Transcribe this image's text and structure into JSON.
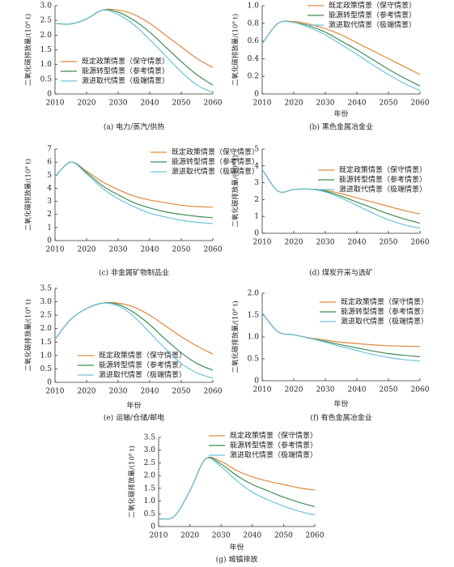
{
  "chart_data": [
    {
      "type": "line",
      "caption": "(a) 电力/蒸汽/供热",
      "y_label": "二氧化碳排放量/(10⁸ t)",
      "x": [
        2010,
        2015,
        2020,
        2025,
        2030,
        2035,
        2040,
        2045,
        2050,
        2055,
        2060
      ],
      "xlim": [
        2010,
        2060
      ],
      "xticks": [
        2010,
        2020,
        2030,
        2040,
        2050,
        2060
      ],
      "ylim": [
        0,
        3
      ],
      "yticks": [
        0,
        0.5,
        {
          "value": 1,
          "label": "1.0"
        },
        1.5,
        {
          "value": 2,
          "label": "2.0"
        },
        2.5,
        {
          "value": 3,
          "label": "3.0"
        }
      ],
      "series": [
        {
          "name": "既定政策情景（保守情景）",
          "color": "#e0883c",
          "values": [
            2.4,
            2.38,
            2.55,
            2.85,
            2.85,
            2.7,
            2.4,
            2.0,
            1.6,
            1.2,
            0.9
          ]
        },
        {
          "name": "能源转型情景（参考情景）",
          "color": "#3f8d55",
          "values": [
            2.4,
            2.38,
            2.55,
            2.85,
            2.78,
            2.5,
            2.1,
            1.6,
            1.1,
            0.65,
            0.3
          ]
        },
        {
          "name": "激进取代情景（极端情景）",
          "color": "#6cc3dc",
          "values": [
            2.4,
            2.38,
            2.55,
            2.85,
            2.7,
            2.35,
            1.85,
            1.3,
            0.75,
            0.3,
            0.05
          ]
        }
      ]
    },
    {
      "type": "line",
      "caption": "(b) 黑色金属冶金业",
      "x_label": "年份",
      "y_label": "二氧化碳排放量/(10⁸ t)",
      "x": [
        2010,
        2015,
        2020,
        2025,
        2030,
        2035,
        2040,
        2045,
        2050,
        2055,
        2060
      ],
      "xlim": [
        2010,
        2060
      ],
      "xticks": [
        2010,
        2020,
        2030,
        2040,
        2050,
        2060
      ],
      "ylim": [
        0,
        1
      ],
      "yticks": [
        0,
        0.2,
        0.4,
        0.6,
        0.8,
        {
          "value": 1,
          "label": "1.0"
        }
      ],
      "series": [
        {
          "name": "既定政策情景（保守情景）",
          "color": "#e0883c",
          "values": [
            0.57,
            0.8,
            0.82,
            0.79,
            0.74,
            0.67,
            0.58,
            0.49,
            0.4,
            0.31,
            0.22
          ]
        },
        {
          "name": "能源转型情景（参考情景）",
          "color": "#3f8d55",
          "values": [
            0.57,
            0.8,
            0.81,
            0.77,
            0.7,
            0.6,
            0.5,
            0.39,
            0.28,
            0.18,
            0.09
          ]
        },
        {
          "name": "激进取代情景（极端情景）",
          "color": "#6cc3dc",
          "values": [
            0.57,
            0.8,
            0.81,
            0.75,
            0.67,
            0.56,
            0.45,
            0.33,
            0.22,
            0.12,
            0.04
          ]
        }
      ]
    },
    {
      "type": "line",
      "caption": "(c) 非金属矿物制品业",
      "y_label": "二氧化碳排放量/(10⁸ t)",
      "x": [
        2010,
        2015,
        2020,
        2025,
        2030,
        2035,
        2040,
        2045,
        2050,
        2055,
        2060
      ],
      "xlim": [
        2010,
        2060
      ],
      "xticks": [
        2010,
        2020,
        2030,
        2040,
        2050,
        2060
      ],
      "ylim": [
        0,
        7
      ],
      "yticks": [
        0,
        1,
        2,
        3,
        4,
        5,
        6,
        7
      ],
      "series": [
        {
          "name": "既定政策情景（保守情景）",
          "color": "#e0883c",
          "values": [
            4.9,
            6.0,
            5.3,
            4.5,
            3.9,
            3.4,
            3.1,
            2.9,
            2.7,
            2.6,
            2.55
          ]
        },
        {
          "name": "能源转型情景（参考情景）",
          "color": "#3f8d55",
          "values": [
            4.9,
            6.0,
            5.2,
            4.2,
            3.5,
            2.9,
            2.5,
            2.2,
            2.0,
            1.85,
            1.75
          ]
        },
        {
          "name": "激进取代情景（极端情景）",
          "color": "#6cc3dc",
          "values": [
            4.9,
            6.0,
            5.1,
            4.0,
            3.2,
            2.6,
            2.1,
            1.8,
            1.55,
            1.4,
            1.3
          ]
        }
      ]
    },
    {
      "type": "line",
      "caption": "(d) 煤炭开采与选矿",
      "y_label": "二氧化碳排放量/(10⁸ t)",
      "x": [
        2010,
        2015,
        2020,
        2025,
        2030,
        2035,
        2040,
        2045,
        2050,
        2055,
        2060
      ],
      "xlim": [
        2010,
        2060
      ],
      "xticks": [
        2010,
        2020,
        2030,
        2040,
        2050,
        2060
      ],
      "ylim": [
        0,
        5
      ],
      "yticks": [
        0,
        1,
        2,
        3,
        4,
        5
      ],
      "series": [
        {
          "name": "既定政策情景（保守情景）",
          "color": "#e0883c",
          "values": [
            3.8,
            2.5,
            2.6,
            2.62,
            2.55,
            2.35,
            2.1,
            1.85,
            1.6,
            1.35,
            1.15
          ]
        },
        {
          "name": "能源转型情景（参考情景）",
          "color": "#3f8d55",
          "values": [
            3.8,
            2.5,
            2.6,
            2.62,
            2.5,
            2.2,
            1.85,
            1.5,
            1.15,
            0.85,
            0.6
          ]
        },
        {
          "name": "激进取代情景（极端情景）",
          "color": "#6cc3dc",
          "values": [
            3.8,
            2.5,
            2.6,
            2.62,
            2.45,
            2.1,
            1.65,
            1.2,
            0.8,
            0.5,
            0.3
          ]
        }
      ]
    },
    {
      "type": "line",
      "caption": "(e) 运输/仓储/邮电",
      "x_label": "年份",
      "y_label": "二氧化碳排放量/(10⁸ t)",
      "x": [
        2010,
        2015,
        2020,
        2025,
        2030,
        2035,
        2040,
        2045,
        2050,
        2055,
        2060
      ],
      "xlim": [
        2010,
        2060
      ],
      "xticks": [
        2010,
        2020,
        2030,
        2040,
        2050,
        2060
      ],
      "ylim": [
        0,
        3.5
      ],
      "yticks": [
        0,
        0.5,
        {
          "value": 1,
          "label": "1.0"
        },
        1.5,
        {
          "value": 2,
          "label": "2.0"
        },
        2.5,
        {
          "value": 3,
          "label": "3.0"
        },
        3.5
      ],
      "series": [
        {
          "name": "既定政策情景（保守情景）",
          "color": "#e0883c",
          "values": [
            1.6,
            2.35,
            2.75,
            2.95,
            2.95,
            2.8,
            2.5,
            2.1,
            1.7,
            1.35,
            1.05
          ]
        },
        {
          "name": "能源转型情景（参考情景）",
          "color": "#3f8d55",
          "values": [
            1.6,
            2.35,
            2.75,
            2.95,
            2.9,
            2.6,
            2.15,
            1.6,
            1.1,
            0.7,
            0.45
          ]
        },
        {
          "name": "激进取代情景（极端情景）",
          "color": "#6cc3dc",
          "values": [
            1.6,
            2.35,
            2.75,
            2.95,
            2.85,
            2.45,
            1.85,
            1.25,
            0.7,
            0.35,
            0.15
          ]
        }
      ]
    },
    {
      "type": "line",
      "caption": "(f) 有色金属冶金业",
      "x_label": "年份",
      "y_label": "二氧化碳排放量/(10⁸ t)",
      "x": [
        2010,
        2015,
        2020,
        2025,
        2030,
        2035,
        2040,
        2045,
        2050,
        2055,
        2060
      ],
      "xlim": [
        2010,
        2060
      ],
      "xticks": [
        2010,
        2020,
        2030,
        2040,
        2050,
        2060
      ],
      "ylim": [
        0,
        2
      ],
      "yticks": [
        0,
        0.5,
        {
          "value": 1,
          "label": "1.0"
        },
        1.5,
        {
          "value": 2,
          "label": "2.0"
        }
      ],
      "series": [
        {
          "name": "既定政策情景（保守情景）",
          "color": "#e0883c",
          "values": [
            1.55,
            1.12,
            1.05,
            0.98,
            0.93,
            0.88,
            0.85,
            0.82,
            0.8,
            0.79,
            0.78
          ]
        },
        {
          "name": "能源转型情景（参考情景）",
          "color": "#3f8d55",
          "values": [
            1.55,
            1.12,
            1.05,
            0.97,
            0.9,
            0.82,
            0.75,
            0.68,
            0.62,
            0.58,
            0.55
          ]
        },
        {
          "name": "激进取代情景（极端情景）",
          "color": "#6cc3dc",
          "values": [
            1.55,
            1.12,
            1.05,
            0.97,
            0.88,
            0.78,
            0.69,
            0.6,
            0.53,
            0.48,
            0.45
          ]
        }
      ]
    },
    {
      "type": "line",
      "caption": "(g) 城镇排放",
      "x_label": "年份",
      "y_label": "二氧化碳排放量/(10⁸ t)",
      "x": [
        2010,
        2015,
        2020,
        2025,
        2030,
        2035,
        2040,
        2045,
        2050,
        2055,
        2060
      ],
      "xlim": [
        2010,
        2060
      ],
      "xticks": [
        2010,
        2020,
        2030,
        2040,
        2050,
        2060
      ],
      "ylim": [
        0,
        3.5
      ],
      "yticks": [
        0,
        0.5,
        {
          "value": 1,
          "label": "1.0"
        },
        1.5,
        {
          "value": 2,
          "label": "2.0"
        },
        2.5,
        {
          "value": 3,
          "label": "3.0"
        },
        3.5
      ],
      "series": [
        {
          "name": "既定政策情景（保守情景）",
          "color": "#e0883c",
          "values": [
            0.3,
            0.4,
            1.4,
            2.65,
            2.55,
            2.2,
            1.95,
            1.78,
            1.65,
            1.52,
            1.43
          ]
        },
        {
          "name": "能源转型情景（参考情景）",
          "color": "#3f8d55",
          "values": [
            0.3,
            0.4,
            1.4,
            2.65,
            2.45,
            2.0,
            1.65,
            1.4,
            1.15,
            0.95,
            0.78
          ]
        },
        {
          "name": "激进取代情景（极端情景）",
          "color": "#6cc3dc",
          "values": [
            0.3,
            0.4,
            1.4,
            2.65,
            2.35,
            1.8,
            1.35,
            1.05,
            0.8,
            0.6,
            0.45
          ]
        }
      ]
    }
  ]
}
